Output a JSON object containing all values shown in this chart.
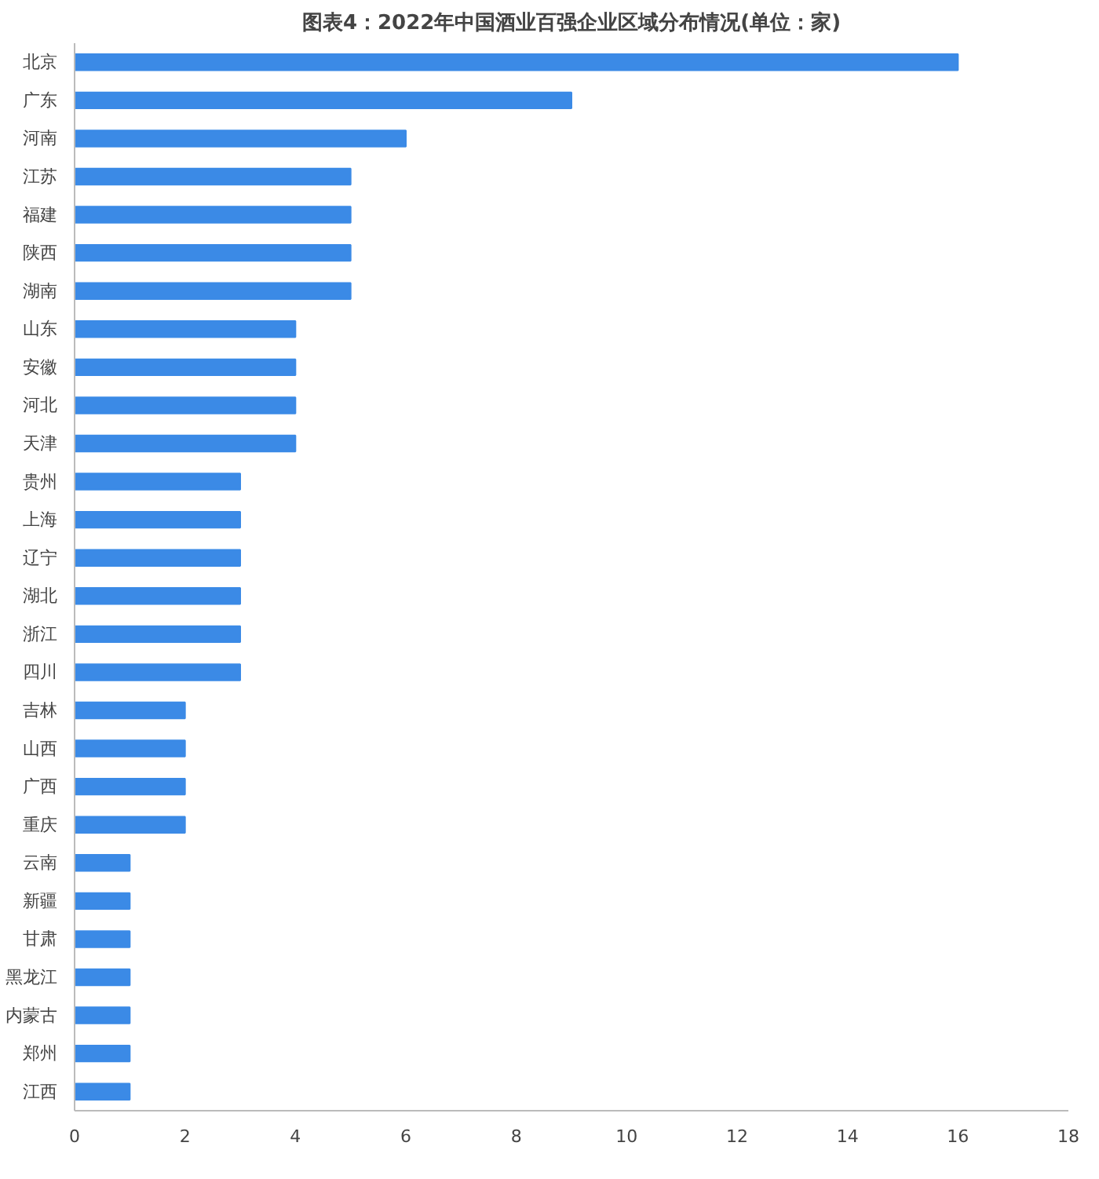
{
  "chart_data": {
    "type": "bar",
    "orientation": "horizontal",
    "title": "图表4：2022年中国酒业百强企业区域分布情况(单位：家)",
    "categories": [
      "北京",
      "广东",
      "河南",
      "江苏",
      "福建",
      "陕西",
      "湖南",
      "山东",
      "安徽",
      "河北",
      "天津",
      "贵州",
      "上海",
      "辽宁",
      "湖北",
      "浙江",
      "四川",
      "吉林",
      "山西",
      "广西",
      "重庆",
      "云南",
      "新疆",
      "甘肃",
      "黑龙江",
      "内蒙古",
      "郑州",
      "江西"
    ],
    "values": [
      16,
      9,
      6,
      5,
      5,
      5,
      5,
      4,
      4,
      4,
      4,
      3,
      3,
      3,
      3,
      3,
      3,
      2,
      2,
      2,
      2,
      1,
      1,
      1,
      1,
      1,
      1,
      1
    ],
    "color": "#3b8ae6",
    "xlim": [
      0,
      18
    ],
    "xticks": [
      0,
      2,
      4,
      6,
      8,
      10,
      12,
      14,
      16,
      18
    ],
    "grid": false
  }
}
